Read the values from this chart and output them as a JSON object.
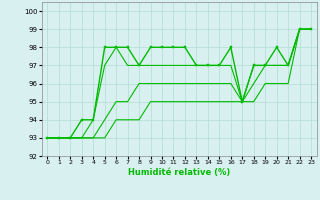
{
  "xlabel": "Humidité relative (%)",
  "background_color": "#d8f0f0",
  "grid_color": "#b0ddd0",
  "line_color": "#00bb00",
  "xlim": [
    -0.5,
    23.5
  ],
  "ylim": [
    92,
    100.5
  ],
  "yticks": [
    92,
    93,
    94,
    95,
    96,
    97,
    98,
    99,
    100
  ],
  "xticks": [
    0,
    1,
    2,
    3,
    4,
    5,
    6,
    7,
    8,
    9,
    10,
    11,
    12,
    13,
    14,
    15,
    16,
    17,
    18,
    19,
    20,
    21,
    22,
    23
  ],
  "lines": [
    {
      "x": [
        0,
        1,
        2,
        3,
        4,
        5,
        6,
        7,
        8,
        9,
        10,
        11,
        12,
        13,
        14,
        15,
        16,
        17,
        18,
        19,
        20,
        21,
        22,
        23
      ],
      "y": [
        93,
        93,
        93,
        94,
        94,
        98,
        98,
        98,
        97,
        98,
        98,
        98,
        98,
        97,
        97,
        97,
        98,
        95,
        97,
        97,
        98,
        97,
        99,
        99
      ],
      "marker": true,
      "lw": 1.0
    },
    {
      "x": [
        0,
        1,
        2,
        3,
        4,
        5,
        6,
        7,
        8,
        9,
        10,
        11,
        12,
        13,
        14,
        15,
        16,
        17,
        18,
        19,
        20,
        21,
        22,
        23
      ],
      "y": [
        93,
        93,
        93,
        93,
        94,
        97,
        98,
        97,
        97,
        97,
        97,
        97,
        97,
        97,
        97,
        97,
        97,
        95,
        97,
        97,
        97,
        97,
        99,
        99
      ],
      "marker": false,
      "lw": 0.8
    },
    {
      "x": [
        0,
        1,
        2,
        3,
        4,
        5,
        6,
        7,
        8,
        9,
        10,
        11,
        12,
        13,
        14,
        15,
        16,
        17,
        18,
        19,
        20,
        21,
        22,
        23
      ],
      "y": [
        93,
        93,
        93,
        93,
        93,
        94,
        95,
        95,
        96,
        96,
        96,
        96,
        96,
        96,
        96,
        96,
        96,
        95,
        96,
        97,
        97,
        97,
        99,
        99
      ],
      "marker": false,
      "lw": 0.8
    },
    {
      "x": [
        0,
        1,
        2,
        3,
        4,
        5,
        6,
        7,
        8,
        9,
        10,
        11,
        12,
        13,
        14,
        15,
        16,
        17,
        18,
        19,
        20,
        21,
        22,
        23
      ],
      "y": [
        93,
        93,
        93,
        93,
        93,
        93,
        94,
        94,
        94,
        95,
        95,
        95,
        95,
        95,
        95,
        95,
        95,
        95,
        95,
        96,
        96,
        96,
        99,
        99
      ],
      "marker": false,
      "lw": 0.8
    }
  ]
}
